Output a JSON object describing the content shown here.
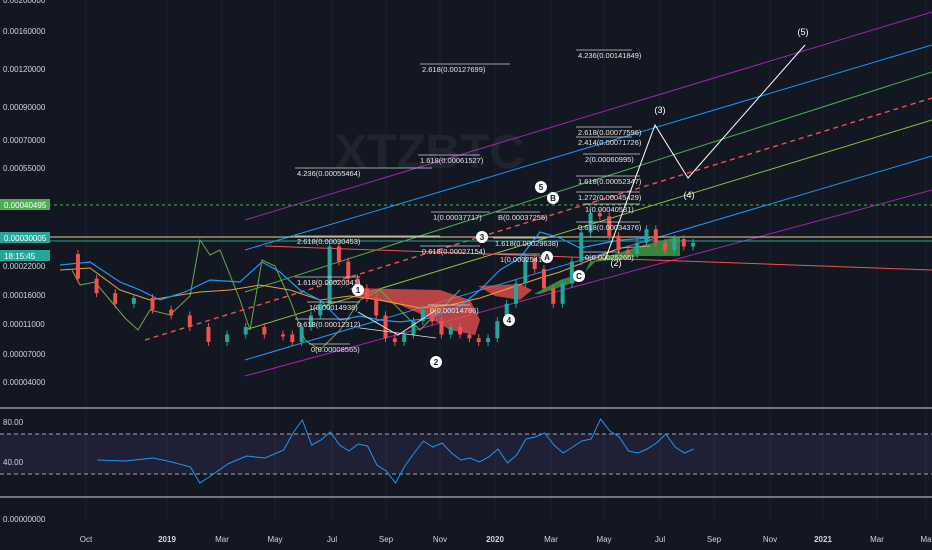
{
  "watermark": "XTZBTC",
  "chart_data": {
    "type": "line",
    "price_ticks": [
      "0.00200000",
      "0.00160000",
      "0.00120000",
      "0.00090000",
      "0.00070000",
      "0.00055000",
      "0.00040495",
      "0.00030005",
      "0.00022000",
      "0.00016000",
      "0.00011000",
      "0.00007000",
      "0.00004000"
    ],
    "osc_ticks": [
      "80.00",
      "40.00",
      "0.00000000"
    ],
    "x_ticks": [
      "Oct",
      "2019",
      "Mar",
      "May",
      "Jul",
      "Sep",
      "Nov",
      "2020",
      "Mar",
      "May",
      "Jul",
      "Sep",
      "Nov",
      "2021",
      "Mar",
      "Ma"
    ],
    "price_tags": [
      {
        "label": "0.00040495",
        "color": "#4caf50"
      },
      {
        "label": "0.00030005",
        "color": "#26a69a"
      },
      {
        "label": "18:15:45",
        "color": "#26a69a"
      }
    ],
    "fib_labels": [
      {
        "text": "4.236(0.00141849)"
      },
      {
        "text": "2.618(0.00127699)"
      },
      {
        "text": "2.618(0.00077596)"
      },
      {
        "text": "2.414(0.00071726)"
      },
      {
        "text": "2(0.00060995)"
      },
      {
        "text": "1.618(0.00061527)"
      },
      {
        "text": "4.236(0.00055464)"
      },
      {
        "text": "1.618(0.00052347)"
      },
      {
        "text": "1.272(0.00045429)"
      },
      {
        "text": "1(0.00040531)"
      },
      {
        "text": "1(0.00037717)"
      },
      {
        "text": "B(0.00037255)"
      },
      {
        "text": "0.618(0.00034376)"
      },
      {
        "text": "2.618(0.00030453)"
      },
      {
        "text": "1.618(0.00029638)"
      },
      {
        "text": "0.618(0.00027154)"
      },
      {
        "text": "1(0.00025410)"
      },
      {
        "text": "0(0.00025266)"
      },
      {
        "text": "1.618(0.00020041)"
      },
      {
        "text": "1(0.00014938)"
      },
      {
        "text": "0(0.00014786)"
      },
      {
        "text": "0.618(0.00012312)"
      },
      {
        "text": "0(0.00008565)"
      }
    ],
    "wave_marks": [
      {
        "label": "1"
      },
      {
        "label": "2"
      },
      {
        "label": "3"
      },
      {
        "label": "4"
      },
      {
        "label": "5"
      },
      {
        "label": "A"
      },
      {
        "label": "B"
      },
      {
        "label": "C"
      }
    ],
    "projection_labels": [
      {
        "label": "(3)"
      },
      {
        "label": "(4)"
      },
      {
        "label": "(5)"
      },
      {
        "label": "(2)"
      }
    ],
    "price_series": [
      [
        0.02,
        0.00026
      ],
      [
        0.03,
        0.0002
      ],
      [
        0.05,
        0.00017
      ],
      [
        0.07,
        0.00015
      ],
      [
        0.09,
        0.00016
      ],
      [
        0.11,
        0.00014
      ],
      [
        0.13,
        0.00013
      ],
      [
        0.15,
        0.00011
      ],
      [
        0.17,
        9e-05
      ],
      [
        0.19,
        0.0001
      ],
      [
        0.21,
        0.00011
      ],
      [
        0.23,
        0.0001
      ],
      [
        0.25,
        0.0001
      ],
      [
        0.26,
        9e-05
      ],
      [
        0.27,
        0.00011
      ],
      [
        0.28,
        0.00013
      ],
      [
        0.29,
        0.00015
      ],
      [
        0.3,
        0.00028
      ],
      [
        0.31,
        0.00024
      ],
      [
        0.32,
        0.0002
      ],
      [
        0.33,
        0.00018
      ],
      [
        0.34,
        0.00016
      ],
      [
        0.35,
        0.00013
      ],
      [
        0.36,
        9.5e-05
      ],
      [
        0.37,
        9e-05
      ],
      [
        0.38,
        0.0001
      ],
      [
        0.39,
        0.00012
      ],
      [
        0.4,
        0.00014
      ],
      [
        0.41,
        0.00012
      ],
      [
        0.42,
        0.0001
      ],
      [
        0.43,
        0.00011
      ],
      [
        0.44,
        0.0001
      ],
      [
        0.45,
        9.5e-05
      ],
      [
        0.46,
        9e-05
      ],
      [
        0.47,
        9.5e-05
      ],
      [
        0.48,
        0.00012
      ],
      [
        0.49,
        0.00015
      ],
      [
        0.5,
        0.00019
      ],
      [
        0.51,
        0.00025
      ],
      [
        0.52,
        0.00022
      ],
      [
        0.53,
        0.00018
      ],
      [
        0.54,
        0.00015
      ],
      [
        0.55,
        0.00019
      ],
      [
        0.56,
        0.00024
      ],
      [
        0.57,
        0.00032
      ],
      [
        0.58,
        0.00038
      ],
      [
        0.59,
        0.00037
      ],
      [
        0.6,
        0.00031
      ],
      [
        0.61,
        0.00027
      ],
      [
        0.62,
        0.00026
      ],
      [
        0.63,
        0.00029
      ],
      [
        0.64,
        0.00033
      ],
      [
        0.65,
        0.00029
      ],
      [
        0.66,
        0.00027
      ],
      [
        0.67,
        0.0003
      ],
      [
        0.68,
        0.00028
      ],
      [
        0.69,
        0.00029
      ]
    ],
    "rsi_series": [
      [
        0.04,
        45
      ],
      [
        0.07,
        44
      ],
      [
        0.1,
        47
      ],
      [
        0.12,
        43
      ],
      [
        0.14,
        38
      ],
      [
        0.15,
        22
      ],
      [
        0.16,
        28
      ],
      [
        0.18,
        41
      ],
      [
        0.2,
        49
      ],
      [
        0.22,
        47
      ],
      [
        0.24,
        55
      ],
      [
        0.25,
        72
      ],
      [
        0.26,
        85
      ],
      [
        0.27,
        60
      ],
      [
        0.28,
        65
      ],
      [
        0.29,
        73
      ],
      [
        0.3,
        60
      ],
      [
        0.31,
        54
      ],
      [
        0.32,
        61
      ],
      [
        0.33,
        59
      ],
      [
        0.34,
        40
      ],
      [
        0.35,
        34
      ],
      [
        0.36,
        22
      ],
      [
        0.37,
        39
      ],
      [
        0.38,
        52
      ],
      [
        0.39,
        64
      ],
      [
        0.4,
        58
      ],
      [
        0.41,
        62
      ],
      [
        0.42,
        52
      ],
      [
        0.43,
        45
      ],
      [
        0.44,
        47
      ],
      [
        0.45,
        43
      ],
      [
        0.46,
        48
      ],
      [
        0.47,
        56
      ],
      [
        0.48,
        42
      ],
      [
        0.49,
        50
      ],
      [
        0.5,
        66
      ],
      [
        0.51,
        68
      ],
      [
        0.52,
        72
      ],
      [
        0.53,
        60
      ],
      [
        0.54,
        52
      ],
      [
        0.55,
        58
      ],
      [
        0.56,
        64
      ],
      [
        0.57,
        66
      ],
      [
        0.58,
        86
      ],
      [
        0.59,
        74
      ],
      [
        0.6,
        68
      ],
      [
        0.61,
        54
      ],
      [
        0.62,
        52
      ],
      [
        0.63,
        56
      ],
      [
        0.64,
        62
      ],
      [
        0.65,
        71
      ],
      [
        0.66,
        58
      ],
      [
        0.67,
        52
      ],
      [
        0.68,
        56
      ]
    ]
  }
}
